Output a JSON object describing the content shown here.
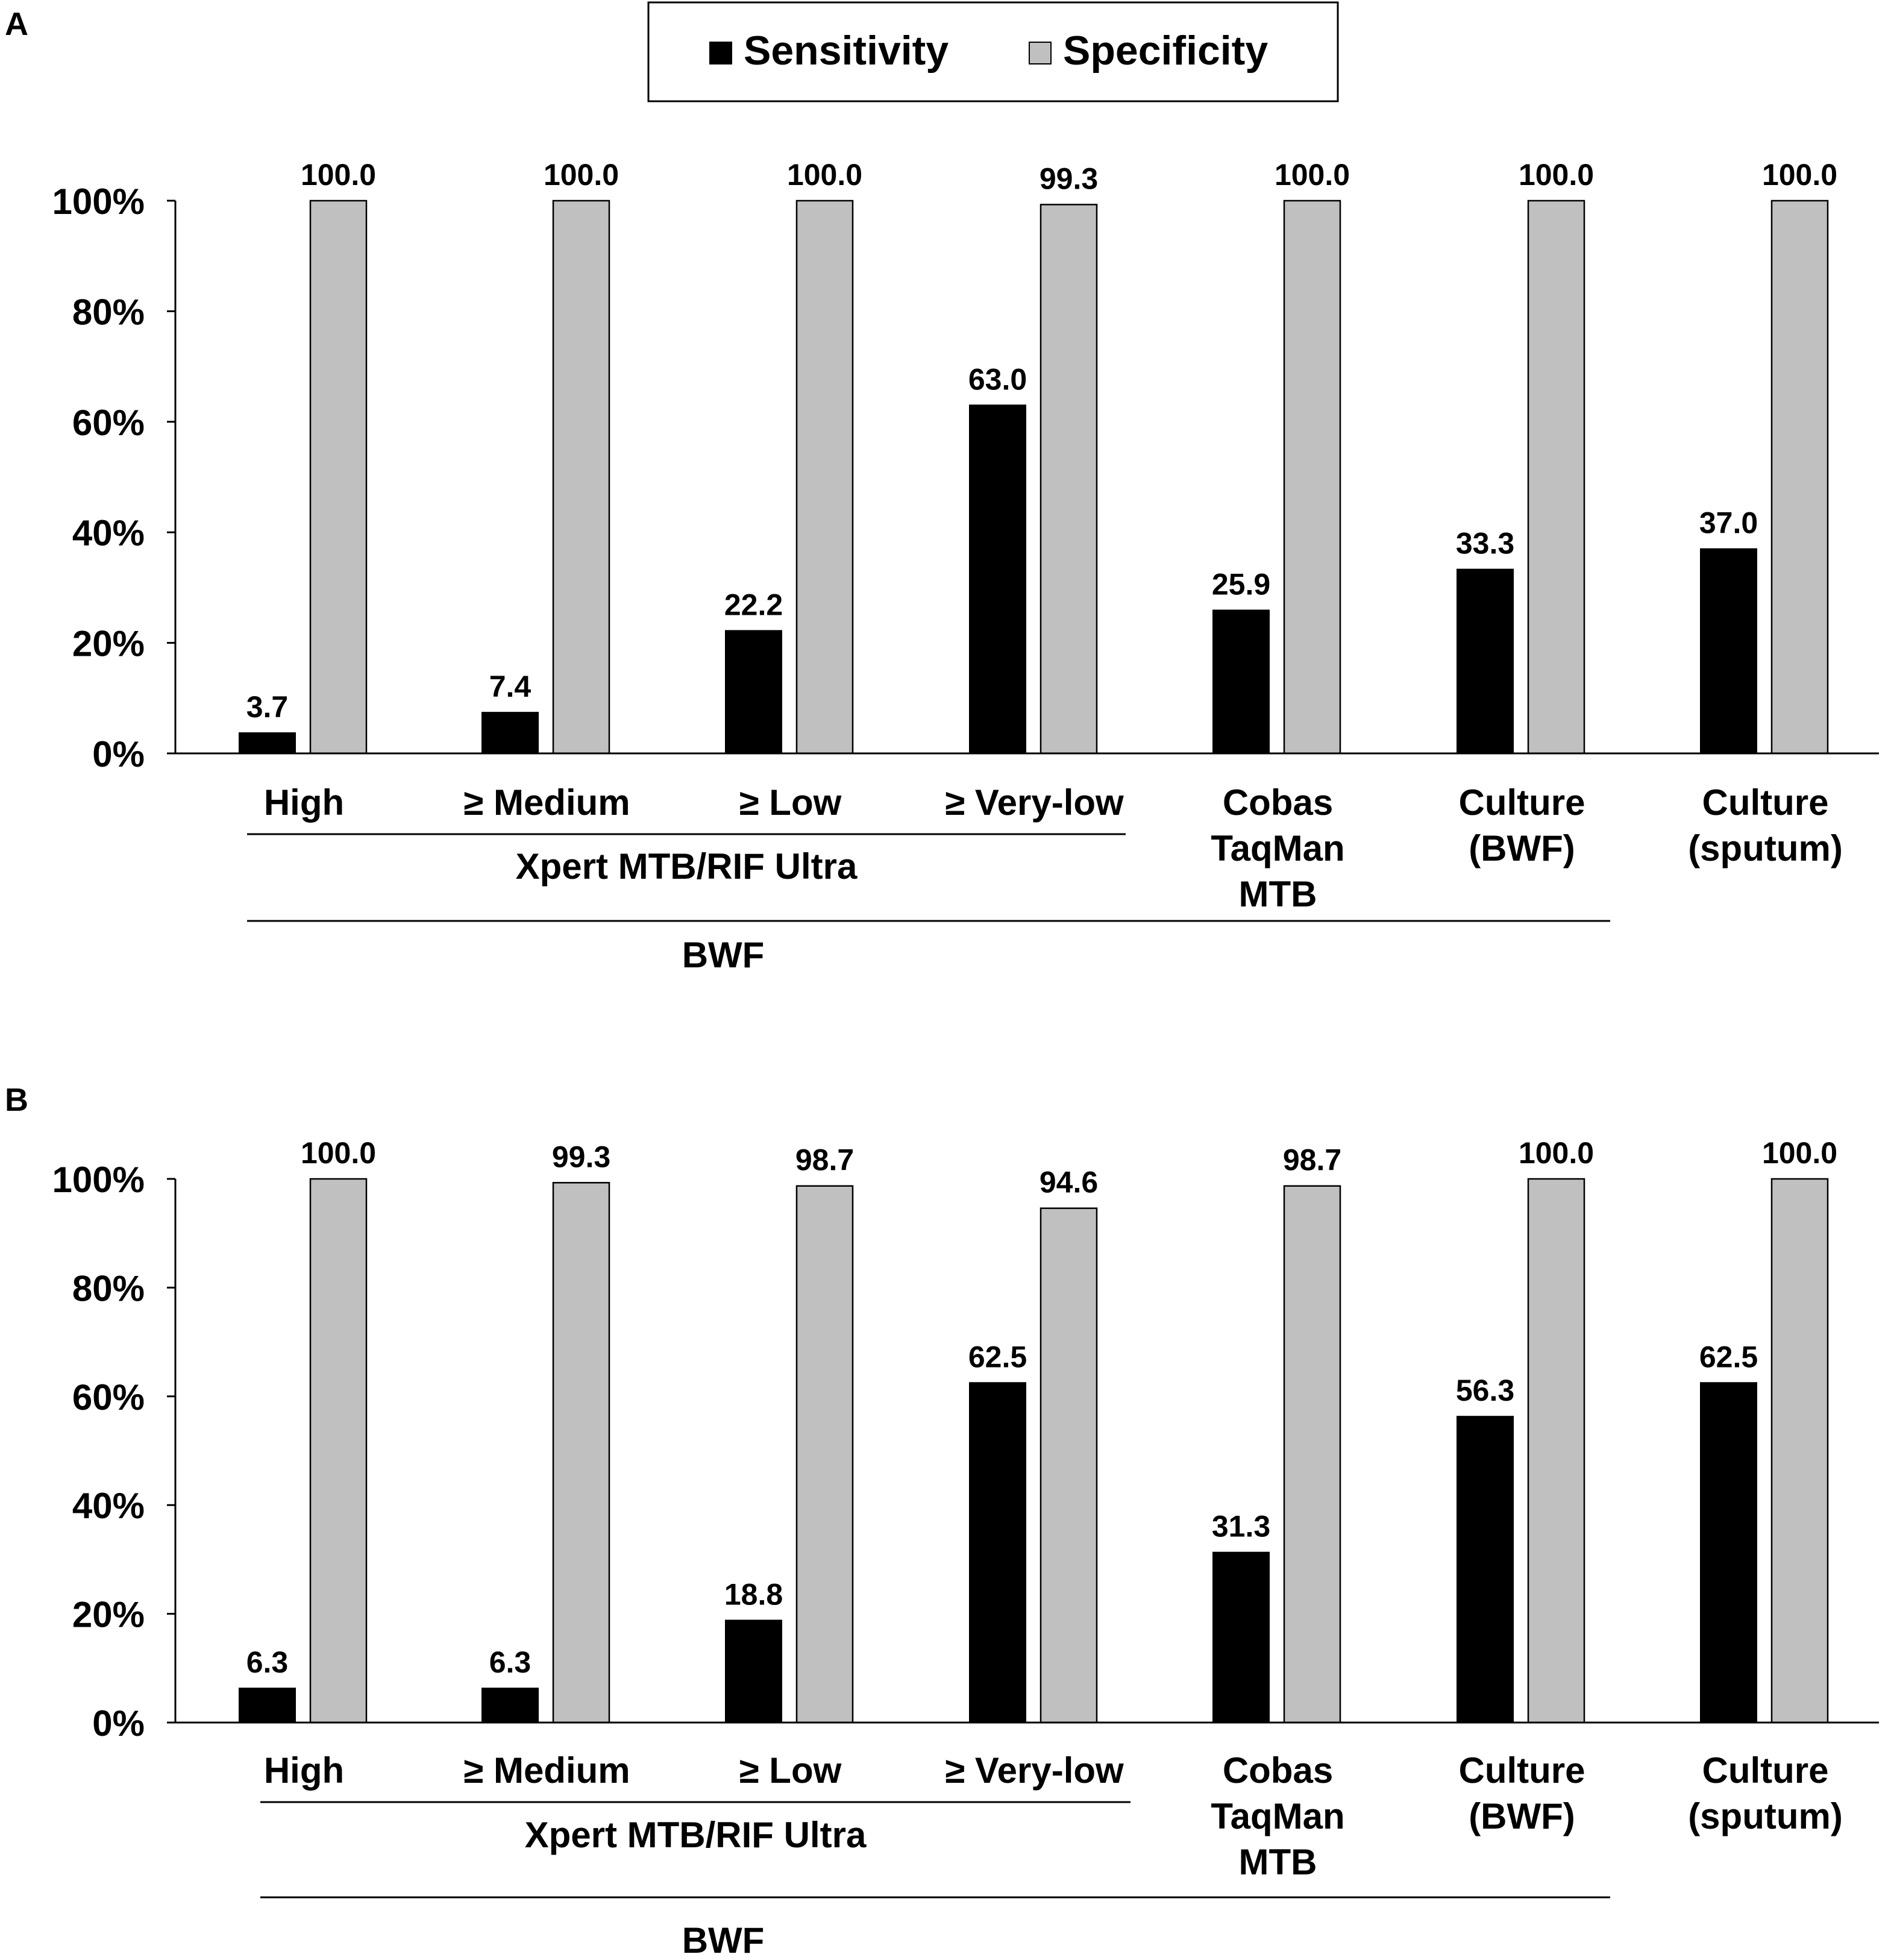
{
  "colors": {
    "sensitivity": "#000000",
    "specificity": "#c0c0c0",
    "axis": "#000000",
    "text": "#000000"
  },
  "legend": {
    "items": [
      {
        "label": "Sensitivity",
        "color": "#000000"
      },
      {
        "label": "Specificity",
        "color": "#c0c0c0"
      }
    ]
  },
  "chart_data": [
    {
      "panel_label": "A",
      "type": "bar",
      "categories": [
        [
          "High"
        ],
        [
          "≥ Medium"
        ],
        [
          "≥ Low"
        ],
        [
          "≥ Very-low"
        ],
        [
          "Cobas",
          "TaqMan",
          "MTB"
        ],
        [
          "Culture",
          "(BWF)"
        ],
        [
          "Culture",
          "(sputum)"
        ]
      ],
      "series": [
        {
          "name": "Sensitivity",
          "values": [
            3.7,
            7.4,
            22.2,
            63.0,
            25.9,
            33.3,
            37.0
          ],
          "labels": [
            "3.7",
            "7.4",
            "22.2",
            "63.0",
            "25.9",
            "33.3",
            "37.0"
          ]
        },
        {
          "name": "Specificity",
          "values": [
            100.0,
            100.0,
            100.0,
            99.3,
            100.0,
            100.0,
            100.0
          ],
          "labels": [
            "100.0",
            "100.0",
            "100.0",
            "99.3",
            "100.0",
            "100.0",
            "100.0"
          ]
        }
      ],
      "yticks": [
        "0%",
        "20%",
        "40%",
        "60%",
        "80%",
        "100%"
      ],
      "ylim": [
        0,
        100
      ],
      "groups": [
        {
          "label": "Xpert MTB/RIF Ultra",
          "from": 0,
          "to": 3
        },
        {
          "label": "BWF",
          "from": 0,
          "to": 5
        }
      ]
    },
    {
      "panel_label": "B",
      "type": "bar",
      "categories": [
        [
          "High"
        ],
        [
          "≥ Medium"
        ],
        [
          "≥ Low"
        ],
        [
          "≥ Very-low"
        ],
        [
          "Cobas",
          "TaqMan",
          "MTB"
        ],
        [
          "Culture",
          "(BWF)"
        ],
        [
          "Culture",
          "(sputum)"
        ]
      ],
      "series": [
        {
          "name": "Sensitivity",
          "values": [
            6.3,
            6.3,
            18.8,
            62.5,
            31.3,
            56.3,
            62.5
          ],
          "labels": [
            "6.3",
            "6.3",
            "18.8",
            "62.5",
            "31.3",
            "56.3",
            "62.5"
          ]
        },
        {
          "name": "Specificity",
          "values": [
            100.0,
            99.3,
            98.7,
            94.6,
            98.7,
            100.0,
            100.0
          ],
          "labels": [
            "100.0",
            "99.3",
            "98.7",
            "94.6",
            "98.7",
            "100.0",
            "100.0"
          ]
        }
      ],
      "yticks": [
        "0%",
        "20%",
        "40%",
        "60%",
        "80%",
        "100%"
      ],
      "ylim": [
        0,
        100
      ],
      "groups": [
        {
          "label": "Xpert MTB/RIF Ultra",
          "from": 0,
          "to": 3
        },
        {
          "label": "BWF",
          "from": 0,
          "to": 5
        }
      ]
    }
  ]
}
